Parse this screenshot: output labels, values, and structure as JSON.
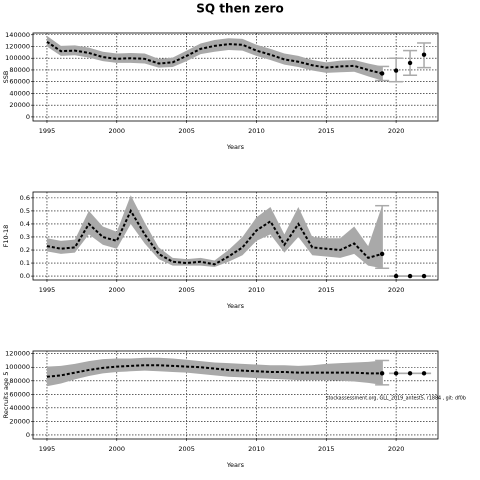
{
  "title": "SQ then zero",
  "chart_data": [
    {
      "type": "line",
      "ylabel": "SSB",
      "xlabel": "Years",
      "xlim": [
        1994,
        2023
      ],
      "ylim": [
        -7000,
        143000
      ],
      "xticks": [
        1995,
        2000,
        2005,
        2010,
        2015,
        2020
      ],
      "yticks": [
        0,
        20000,
        40000,
        60000,
        80000,
        100000,
        120000,
        140000
      ],
      "grid": true,
      "estimate": {
        "color": "#000000",
        "band_color": "#a9a9a9",
        "x": [
          1995,
          1996,
          1997,
          1998,
          1999,
          2000,
          2001,
          2002,
          2003,
          2004,
          2005,
          2006,
          2007,
          2008,
          2009,
          2010,
          2011,
          2012,
          2013,
          2014,
          2015,
          2016,
          2017,
          2018,
          2019
        ],
        "values": [
          128000,
          112000,
          113000,
          109000,
          102000,
          99000,
          100000,
          99000,
          91000,
          93000,
          104000,
          116000,
          121000,
          124000,
          123000,
          113000,
          106000,
          98000,
          94000,
          88000,
          84000,
          86000,
          87000,
          80000,
          74000
        ],
        "lower": [
          120000,
          104000,
          105000,
          101000,
          95000,
          92000,
          92000,
          91000,
          84000,
          85000,
          95000,
          107000,
          111000,
          114000,
          113000,
          104000,
          97000,
          89000,
          85000,
          79000,
          75000,
          76000,
          77000,
          69000,
          62000
        ],
        "upper": [
          138000,
          121000,
          122000,
          118000,
          111000,
          108000,
          109000,
          108000,
          99000,
          101000,
          113000,
          125000,
          131000,
          134000,
          133000,
          123000,
          116000,
          108000,
          104000,
          97000,
          93000,
          96000,
          97000,
          91000,
          86000
        ]
      },
      "projection": {
        "color": "#000000",
        "bar_color": "#aaaaaa",
        "x": [
          2019,
          2020,
          2021,
          2022
        ],
        "values": [
          74000,
          79000,
          92000,
          106000
        ],
        "lower": [
          62000,
          60000,
          71000,
          84000
        ],
        "upper": [
          86000,
          100000,
          113000,
          126000
        ]
      }
    },
    {
      "type": "line",
      "ylabel": "F10-18",
      "xlabel": "Years",
      "xlim": [
        1994,
        2023
      ],
      "ylim": [
        -0.03,
        0.645
      ],
      "xticks": [
        1995,
        2000,
        2005,
        2010,
        2015,
        2020
      ],
      "yticks": [
        {
          "value": 0,
          "label": "0.0"
        },
        0.1,
        0.2,
        0.3,
        0.4,
        0.5,
        0.6
      ],
      "grid": true,
      "estimate": {
        "color": "#000000",
        "band_color": "#a9a9a9",
        "x": [
          1995,
          1996,
          1997,
          1998,
          1999,
          2000,
          2001,
          2002,
          2003,
          2004,
          2005,
          2006,
          2007,
          2008,
          2009,
          2010,
          2011,
          2012,
          2013,
          2014,
          2015,
          2016,
          2017,
          2018,
          2019
        ],
        "values": [
          0.23,
          0.21,
          0.22,
          0.4,
          0.3,
          0.27,
          0.5,
          0.32,
          0.17,
          0.11,
          0.1,
          0.11,
          0.09,
          0.15,
          0.22,
          0.35,
          0.42,
          0.24,
          0.4,
          0.22,
          0.21,
          0.2,
          0.25,
          0.14,
          0.17
        ],
        "lower": [
          0.19,
          0.17,
          0.18,
          0.32,
          0.24,
          0.21,
          0.4,
          0.25,
          0.13,
          0.08,
          0.08,
          0.08,
          0.07,
          0.11,
          0.16,
          0.27,
          0.32,
          0.18,
          0.3,
          0.16,
          0.15,
          0.14,
          0.17,
          0.08,
          0.06
        ],
        "upper": [
          0.29,
          0.27,
          0.28,
          0.5,
          0.38,
          0.34,
          0.62,
          0.41,
          0.22,
          0.14,
          0.13,
          0.14,
          0.12,
          0.2,
          0.3,
          0.45,
          0.53,
          0.32,
          0.53,
          0.3,
          0.29,
          0.29,
          0.38,
          0.23,
          0.54
        ]
      },
      "projection": {
        "color": "#000000",
        "bar_color": "#aaaaaa",
        "x": [
          2019,
          2020,
          2021,
          2022
        ],
        "values": [
          0.17,
          0,
          0,
          0
        ],
        "lower": [
          0.06,
          0,
          0,
          0
        ],
        "upper": [
          0.54,
          0,
          0,
          0
        ]
      }
    },
    {
      "type": "line",
      "ylabel": "Recruits age 5",
      "xlabel": "Years",
      "xlim": [
        1994,
        2023
      ],
      "ylim": [
        -6000,
        124000
      ],
      "xticks": [
        1995,
        2000,
        2005,
        2010,
        2015,
        2020
      ],
      "yticks": [
        0,
        20000,
        40000,
        60000,
        80000,
        100000,
        120000
      ],
      "grid": true,
      "annotation": "stockassessment.org, GLL_2019_antest5, r1884 , git: df0b",
      "estimate": {
        "color": "#000000",
        "band_color": "#a9a9a9",
        "x": [
          1995,
          1996,
          1997,
          1998,
          1999,
          2000,
          2001,
          2002,
          2003,
          2004,
          2005,
          2006,
          2007,
          2008,
          2009,
          2010,
          2011,
          2012,
          2013,
          2014,
          2015,
          2016,
          2017,
          2018,
          2019
        ],
        "values": [
          86000,
          88000,
          92000,
          96000,
          99000,
          101000,
          102000,
          103000,
          103000,
          102000,
          101000,
          100000,
          98000,
          96000,
          95000,
          94000,
          93000,
          93000,
          92000,
          92000,
          92000,
          92000,
          92000,
          91000,
          91000
        ],
        "lower": [
          72000,
          76000,
          82000,
          87000,
          91000,
          93000,
          94000,
          95000,
          94000,
          93000,
          92000,
          90000,
          88000,
          86000,
          85000,
          84000,
          83000,
          82000,
          81000,
          81000,
          81000,
          80000,
          79000,
          77000,
          74000
        ],
        "upper": [
          101000,
          102000,
          105000,
          109000,
          112000,
          113000,
          113000,
          114000,
          114000,
          113000,
          111000,
          109000,
          107000,
          106000,
          105000,
          104000,
          103000,
          103000,
          102000,
          103000,
          105000,
          106000,
          107000,
          108000,
          110000
        ]
      },
      "projection": {
        "color": "#000000",
        "bar_color": "#aaaaaa",
        "x": [
          2019,
          2020,
          2021,
          2022
        ],
        "values": [
          91000,
          91000,
          91000,
          91000
        ],
        "lower": [
          74000,
          91000,
          91000,
          91000
        ],
        "upper": [
          110000,
          91000,
          91000,
          91000
        ]
      }
    }
  ]
}
